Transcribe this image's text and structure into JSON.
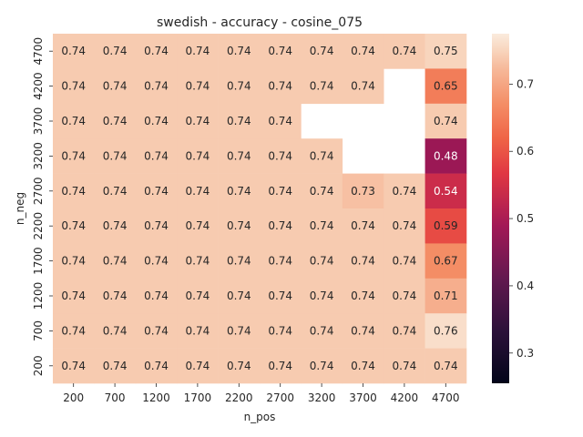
{
  "chart_data": {
    "type": "heatmap",
    "title": "swedish - accuracy - cosine_075",
    "xlabel": "n_pos",
    "ylabel": "n_neg",
    "x_categories": [
      "200",
      "700",
      "1200",
      "1700",
      "2200",
      "2700",
      "3200",
      "3700",
      "4200",
      "4700"
    ],
    "y_categories": [
      "4700",
      "4200",
      "3700",
      "3200",
      "2700",
      "2200",
      "1700",
      "1200",
      "700",
      "200"
    ],
    "values": [
      [
        0.74,
        0.74,
        0.74,
        0.74,
        0.74,
        0.74,
        0.74,
        0.74,
        0.74,
        0.75
      ],
      [
        0.74,
        0.74,
        0.74,
        0.74,
        0.74,
        0.74,
        0.74,
        0.74,
        null,
        0.65
      ],
      [
        0.74,
        0.74,
        0.74,
        0.74,
        0.74,
        0.74,
        null,
        null,
        null,
        0.74
      ],
      [
        0.74,
        0.74,
        0.74,
        0.74,
        0.74,
        0.74,
        0.74,
        null,
        null,
        0.48
      ],
      [
        0.74,
        0.74,
        0.74,
        0.74,
        0.74,
        0.74,
        0.74,
        0.73,
        0.74,
        0.54
      ],
      [
        0.74,
        0.74,
        0.74,
        0.74,
        0.74,
        0.74,
        0.74,
        0.74,
        0.74,
        0.59
      ],
      [
        0.74,
        0.74,
        0.74,
        0.74,
        0.74,
        0.74,
        0.74,
        0.74,
        0.74,
        0.67
      ],
      [
        0.74,
        0.74,
        0.74,
        0.74,
        0.74,
        0.74,
        0.74,
        0.74,
        0.74,
        0.71
      ],
      [
        0.74,
        0.74,
        0.74,
        0.74,
        0.74,
        0.74,
        0.74,
        0.74,
        0.74,
        0.76
      ],
      [
        0.74,
        0.74,
        0.74,
        0.74,
        0.74,
        0.74,
        0.74,
        0.74,
        0.74,
        0.74
      ]
    ],
    "colorbar": {
      "range": [
        0.255,
        0.775
      ],
      "ticks": [
        "0.3",
        "0.4",
        "0.5",
        "0.6",
        "0.7"
      ],
      "colormap": "rocket"
    },
    "grid": false
  }
}
